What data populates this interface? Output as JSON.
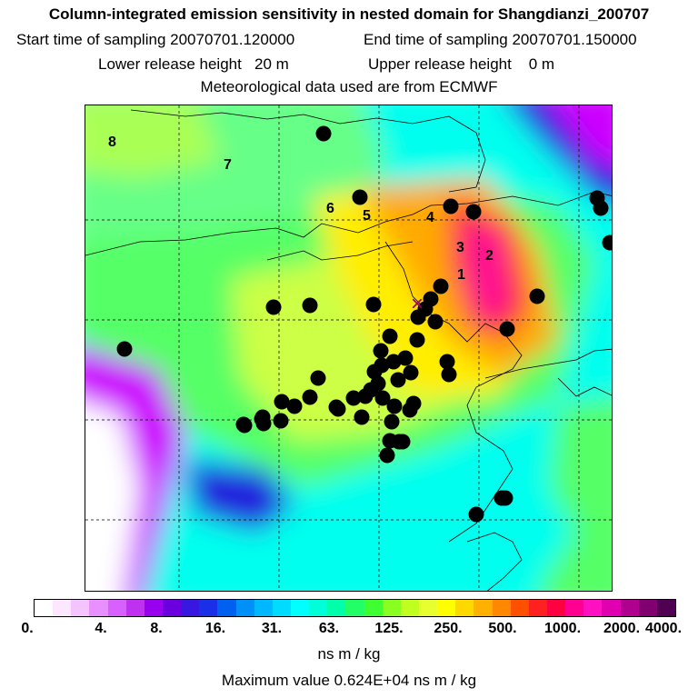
{
  "header": {
    "title": "Column-integrated emission sensitivity in nested domain for Shangdianzi_200707",
    "line2_start": "Start time of sampling 20070701.120000",
    "line2_end": "End time of sampling 20070701.150000",
    "line3_lower": "Lower release height   20 m",
    "line3_upper": "Upper release height    0 m",
    "line4": "Meteorological data used are from ECMWF"
  },
  "map": {
    "day_labels": [
      "8",
      "7",
      "6",
      "5",
      "4",
      "3",
      "2",
      "1"
    ],
    "receptor_marker": "×",
    "colors": {
      "white": "#ffffff",
      "magenta": "#cc00ff",
      "blue": "#2222dd",
      "cyan": "#00ffee",
      "green": "#55ff66",
      "yellowgreen": "#ccff44",
      "yellow": "#ffee00",
      "orange": "#ffaa00",
      "red": "#ff2222",
      "pink": "#ff1493"
    }
  },
  "colorbar": {
    "colors": [
      "#ffffff",
      "#fbe8ff",
      "#f3c4ff",
      "#e890ff",
      "#d860ff",
      "#c030f0",
      "#9900ee",
      "#6a00e0",
      "#3818e0",
      "#1a30e8",
      "#0060f0",
      "#0090f8",
      "#00b8ff",
      "#00dcff",
      "#00ffff",
      "#00ffd8",
      "#00ffaa",
      "#22ff66",
      "#40ff30",
      "#88ff20",
      "#c0ff20",
      "#e8ff30",
      "#ffff00",
      "#ffd800",
      "#ffb000",
      "#ff8800",
      "#ff5000",
      "#ff2020",
      "#ff0040",
      "#ff0090",
      "#ff10c0",
      "#e000b0",
      "#b00090",
      "#800070",
      "#500050"
    ],
    "tick_labels": [
      "0.",
      "4.",
      "8.",
      "16.",
      "31.",
      "63.",
      "125.",
      "250.",
      "500.",
      "1000.",
      "2000.",
      "4000."
    ],
    "units": "ns m / kg",
    "max_value_text": "Maximum value  0.624E+04 ns m / kg"
  }
}
